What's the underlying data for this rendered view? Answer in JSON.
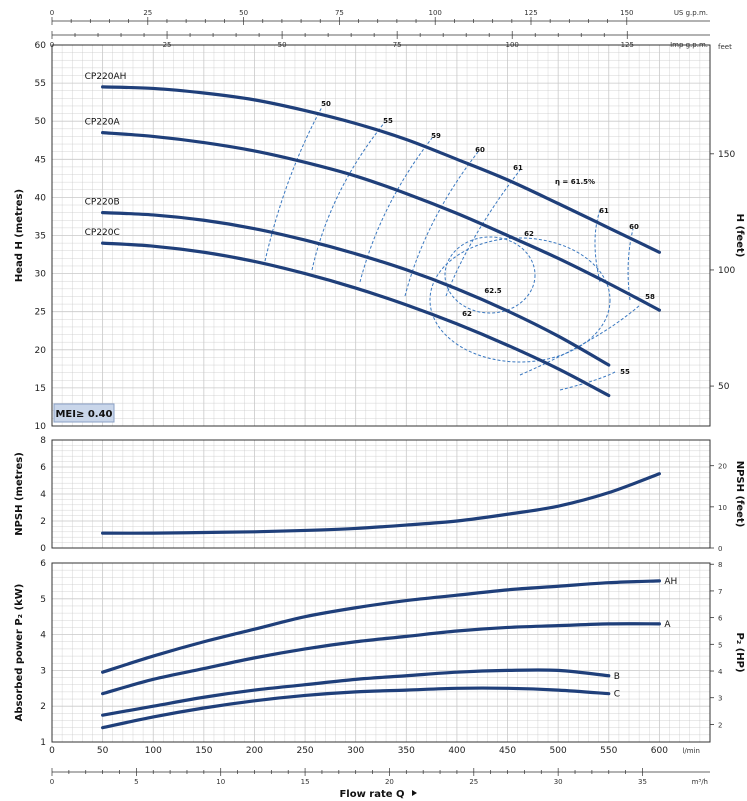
{
  "chart_data": [
    {
      "type": "line",
      "panel": "head",
      "ylabel": "Head H (metres)",
      "ylabel_right": "H (feet)",
      "ylim": [
        10,
        60
      ],
      "yticks": [
        10,
        15,
        20,
        25,
        30,
        35,
        40,
        45,
        50,
        55,
        60
      ],
      "right_ticks": [
        50,
        100,
        150
      ],
      "right_unit": "feet",
      "badge": "MEI≥ 0.40",
      "series": [
        {
          "name": "CP220AH",
          "x": [
            50,
            100,
            150,
            200,
            250,
            300,
            350,
            400,
            450,
            500,
            550,
            600
          ],
          "y": [
            54.5,
            54.3,
            53.7,
            52.8,
            51.4,
            49.7,
            47.6,
            45.0,
            42.3,
            39.2,
            36.0,
            32.8
          ]
        },
        {
          "name": "CP220A",
          "x": [
            50,
            100,
            150,
            200,
            250,
            300,
            350,
            400,
            450,
            500,
            550,
            600
          ],
          "y": [
            48.5,
            48.0,
            47.2,
            46.1,
            44.6,
            42.8,
            40.5,
            37.9,
            35.0,
            32.0,
            28.7,
            25.2
          ]
        },
        {
          "name": "CP220B",
          "x": [
            50,
            100,
            150,
            200,
            250,
            300,
            350,
            400,
            450,
            500,
            550
          ],
          "y": [
            38.0,
            37.7,
            37.0,
            35.9,
            34.4,
            32.6,
            30.5,
            28.0,
            25.1,
            21.8,
            18.0
          ]
        },
        {
          "name": "CP220C",
          "x": [
            50,
            100,
            150,
            200,
            250,
            300,
            350,
            400,
            450,
            500,
            550
          ],
          "y": [
            34.0,
            33.6,
            32.8,
            31.6,
            30.0,
            28.1,
            25.9,
            23.4,
            20.6,
            17.5,
            14.0
          ]
        }
      ],
      "efficiency_labels": [
        "50",
        "55",
        "59",
        "60",
        "61",
        "η = 61.5%",
        "61",
        "60",
        "62",
        "58",
        "62.5",
        "62",
        "55"
      ]
    },
    {
      "type": "line",
      "panel": "npsh",
      "ylabel": "NPSH (metres)",
      "ylabel_right": "NPSH (feet)",
      "ylim": [
        0,
        8
      ],
      "yticks": [
        0,
        2,
        4,
        6,
        8
      ],
      "right_ticks": [
        0,
        10,
        20
      ],
      "series": [
        {
          "name": "",
          "x": [
            50,
            100,
            150,
            200,
            250,
            300,
            350,
            400,
            450,
            500,
            550,
            600
          ],
          "y": [
            1.1,
            1.1,
            1.15,
            1.2,
            1.3,
            1.45,
            1.7,
            2.0,
            2.5,
            3.1,
            4.1,
            5.5
          ]
        }
      ]
    },
    {
      "type": "line",
      "panel": "power",
      "ylabel": "Absorbed power P₂ (kW)",
      "ylabel_right": "P₂ (HP)",
      "ylim": [
        1,
        6
      ],
      "yticks": [
        1,
        2,
        3,
        4,
        5,
        6
      ],
      "right_ticks": [
        2,
        3,
        4,
        5,
        6,
        7,
        8
      ],
      "xlabel": "Flow rate Q",
      "xunit": "l/min",
      "xlim": [
        0,
        650
      ],
      "xticks": [
        0,
        50,
        100,
        150,
        200,
        250,
        300,
        350,
        400,
        450,
        500,
        550,
        600
      ],
      "series": [
        {
          "name": "AH",
          "x": [
            50,
            100,
            150,
            200,
            250,
            300,
            350,
            400,
            450,
            500,
            550,
            600
          ],
          "y": [
            2.95,
            3.4,
            3.8,
            4.15,
            4.5,
            4.75,
            4.95,
            5.1,
            5.25,
            5.35,
            5.45,
            5.5
          ]
        },
        {
          "name": "A",
          "x": [
            50,
            100,
            150,
            200,
            250,
            300,
            350,
            400,
            450,
            500,
            550,
            600
          ],
          "y": [
            2.35,
            2.75,
            3.05,
            3.35,
            3.6,
            3.8,
            3.95,
            4.1,
            4.2,
            4.25,
            4.3,
            4.3
          ]
        },
        {
          "name": "B",
          "x": [
            50,
            100,
            150,
            200,
            250,
            300,
            350,
            400,
            450,
            500,
            550
          ],
          "y": [
            1.75,
            2.0,
            2.25,
            2.45,
            2.6,
            2.75,
            2.85,
            2.95,
            3.0,
            3.0,
            2.85
          ]
        },
        {
          "name": "C",
          "x": [
            50,
            100,
            150,
            200,
            250,
            300,
            350,
            400,
            450,
            500,
            550
          ],
          "y": [
            1.4,
            1.7,
            1.95,
            2.15,
            2.3,
            2.4,
            2.45,
            2.5,
            2.5,
            2.45,
            2.35
          ]
        }
      ]
    }
  ],
  "top_axes": {
    "usgpm": {
      "unit": "US g.p.m.",
      "ticks": [
        0,
        25,
        50,
        75,
        100,
        125,
        150
      ]
    },
    "impgpm": {
      "unit": "Imp g.p.m.",
      "ticks": [
        0,
        25,
        50,
        75,
        100,
        125
      ]
    }
  },
  "bottom_axis": {
    "unit": "m³/h",
    "ticks": [
      0,
      5,
      10,
      15,
      20,
      25,
      30,
      35
    ]
  },
  "colors": {
    "curve": "#1f3f7a",
    "dashed": "#3a78c0",
    "grid": "#c9c9c9",
    "panel_border": "#333333"
  }
}
